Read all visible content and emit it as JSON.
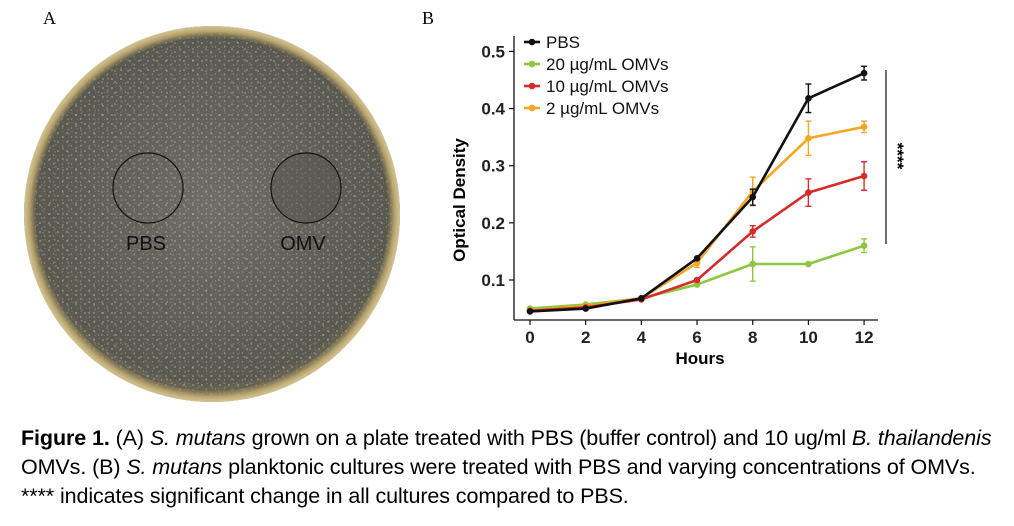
{
  "panel_a": {
    "letter": "A",
    "labels": {
      "pbs": "PBS",
      "omv": "OMV"
    }
  },
  "panel_b": {
    "letter": "B",
    "significance": "****"
  },
  "chart_data": {
    "type": "line",
    "title": "",
    "xlabel": "Hours",
    "ylabel": "Optical Density",
    "x": [
      0,
      2,
      4,
      6,
      8,
      10,
      12
    ],
    "xlim": [
      0,
      12.5
    ],
    "ylim": [
      0.03,
      0.52
    ],
    "xticks": [
      "0",
      "2",
      "4",
      "6",
      "8",
      "10",
      "12"
    ],
    "yticks": [
      "0.1",
      "0.2",
      "0.3",
      "0.4",
      "0.5"
    ],
    "ytick_values": [
      0.1,
      0.2,
      0.3,
      0.4,
      0.5
    ],
    "grid": false,
    "legend_position": "top-left",
    "series": [
      {
        "name": "PBS",
        "color": "#111111",
        "values": [
          0.045,
          0.05,
          0.068,
          0.138,
          0.245,
          0.418,
          0.462
        ],
        "errors": [
          0,
          0,
          0,
          0,
          0.014,
          0.025,
          0.012
        ]
      },
      {
        "name": "20 µg/mL OMVs",
        "color": "#8dc63f",
        "values": [
          0.05,
          0.057,
          0.068,
          0.092,
          0.128,
          0.128,
          0.16
        ],
        "errors": [
          0,
          0,
          0,
          0,
          0.03,
          0,
          0.012
        ]
      },
      {
        "name": "10 µg/mL OMVs",
        "color": "#d62b2b",
        "values": [
          0.046,
          0.052,
          0.066,
          0.1,
          0.185,
          0.253,
          0.282
        ],
        "errors": [
          0,
          0,
          0,
          0,
          0.01,
          0.024,
          0.025
        ]
      },
      {
        "name": "2 µg/mL OMVs",
        "color": "#f5a623",
        "values": [
          0.047,
          0.054,
          0.068,
          0.13,
          0.255,
          0.348,
          0.368
        ],
        "errors": [
          0,
          0,
          0,
          0.008,
          0.025,
          0.03,
          0.01
        ]
      }
    ]
  },
  "caption": {
    "fig_label": "Figure 1.",
    "t1": " (A) ",
    "t2": "S. mutans",
    "t3": " grown on a plate treated with PBS (buffer control) and 10 ug/ml ",
    "t4": "B. thailandenis",
    "t5": " OMVs. (B) ",
    "t6": "S. mutans",
    "t7": " planktonic cultures were treated with PBS and varying concentrations of OMVs. **** indicates significant change in all cultures compared to PBS."
  }
}
